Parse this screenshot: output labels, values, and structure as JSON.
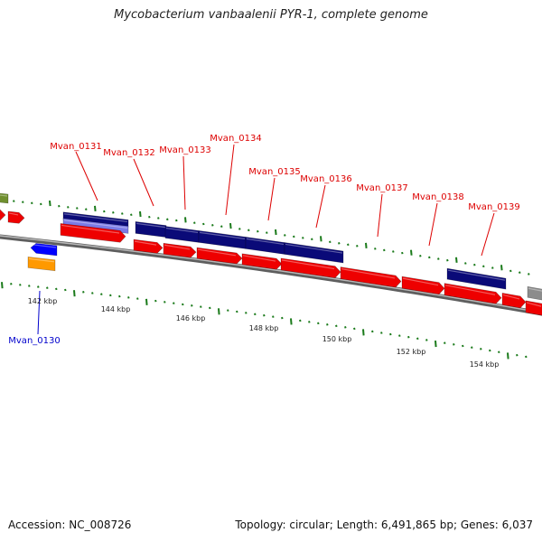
{
  "header": {
    "title": "Mycobacterium vanbaalenii PYR-1, complete genome"
  },
  "footer": {
    "accession": "Accession: NC_008726",
    "topology": "Topology: circular; Length: 6,491,865 bp; Genes: 6,037"
  },
  "colors": {
    "backbone": "#8a8a8a",
    "cds_forward": "#ee0000",
    "gene_navy": "#0a0a78",
    "gene_lavender": "#7b7be6",
    "tick": "#1a7a1a",
    "label_red": "#dd0000",
    "label_blue": "#0000cc",
    "olive": "#6f8f2f",
    "orange": "#ff9900",
    "blue": "#0000ff",
    "grey": "#8c8c8c"
  },
  "scale_labels": [
    "142 kbp",
    "144 kbp",
    "146 kbp",
    "148 kbp",
    "150 kbp",
    "152 kbp",
    "154 kbp"
  ],
  "gene_labels": [
    {
      "text": "Mvan_0130",
      "color": "label_blue"
    },
    {
      "text": "Mvan_0131",
      "color": "label_red"
    },
    {
      "text": "Mvan_0132",
      "color": "label_red"
    },
    {
      "text": "Mvan_0133",
      "color": "label_red"
    },
    {
      "text": "Mvan_0134",
      "color": "label_red"
    },
    {
      "text": "Mvan_0135",
      "color": "label_red"
    },
    {
      "text": "Mvan_0136",
      "color": "label_red"
    },
    {
      "text": "Mvan_0137",
      "color": "label_red"
    },
    {
      "text": "Mvan_0138",
      "color": "label_red"
    },
    {
      "text": "Mvan_0139",
      "color": "label_red"
    }
  ]
}
